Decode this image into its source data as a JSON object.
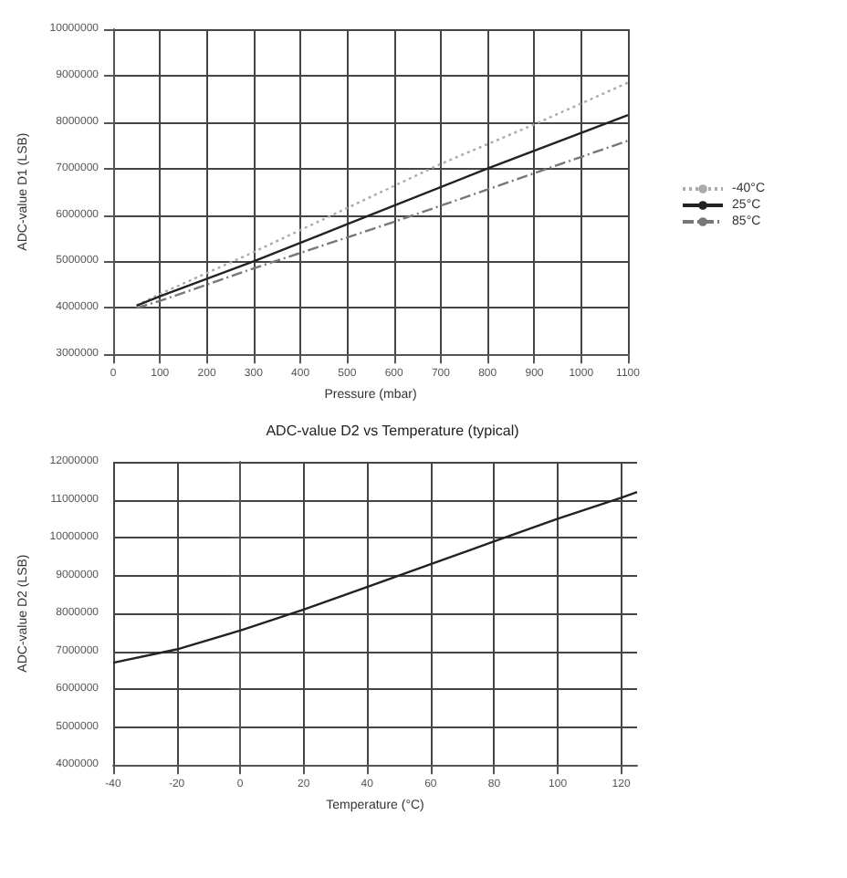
{
  "chart_data": [
    {
      "type": "line",
      "xlabel": "Pressure (mbar)",
      "ylabel": "ADC-value D1 (LSB)",
      "xlim": [
        0,
        1100
      ],
      "xticks": [
        0,
        100,
        200,
        300,
        400,
        500,
        600,
        700,
        800,
        900,
        1000,
        1100
      ],
      "ylim": [
        3000000,
        10000000
      ],
      "yticks": [
        3000000,
        4000000,
        5000000,
        6000000,
        7000000,
        8000000,
        9000000,
        10000000
      ],
      "grid": true,
      "legend": "right",
      "marker": "none",
      "series": [
        {
          "name": "-40°C",
          "color": "#aaaaaa",
          "line_style": "dotted",
          "x": [
            50,
            100,
            300,
            500,
            700,
            900,
            1100
          ],
          "values": [
            4050000,
            4300000,
            5200000,
            6150000,
            7100000,
            7950000,
            8850000
          ]
        },
        {
          "name": "25°C",
          "color": "#222222",
          "line_style": "solid",
          "x": [
            50,
            100,
            300,
            500,
            800,
            1100
          ],
          "values": [
            4050000,
            4250000,
            5000000,
            5800000,
            7000000,
            8150000
          ]
        },
        {
          "name": "85°C",
          "color": "#777777",
          "line_style": "dashed",
          "x": [
            50,
            100,
            300,
            600,
            900,
            1100
          ],
          "values": [
            4000000,
            4150000,
            4850000,
            5850000,
            6900000,
            7600000
          ]
        }
      ]
    },
    {
      "type": "line",
      "title": "ADC-value D2 vs Temperature (typical)",
      "xlabel": "Temperature (°C)",
      "ylabel": "ADC-value D2 (LSB)",
      "xlim": [
        -40,
        125
      ],
      "xticks": [
        -40,
        -20,
        0,
        20,
        40,
        60,
        80,
        100,
        120
      ],
      "ylim": [
        4000000,
        12000000
      ],
      "yticks": [
        4000000,
        5000000,
        6000000,
        7000000,
        8000000,
        9000000,
        10000000,
        11000000,
        12000000
      ],
      "grid": true,
      "marker": "none",
      "series": [
        {
          "color": "#222222",
          "line_style": "solid",
          "x": [
            -40,
            -20,
            0,
            20,
            40,
            60,
            80,
            100,
            120,
            125
          ],
          "values": [
            6700000,
            7050000,
            7550000,
            8100000,
            8700000,
            9300000,
            9900000,
            10500000,
            11050000,
            11200000
          ]
        }
      ]
    }
  ]
}
